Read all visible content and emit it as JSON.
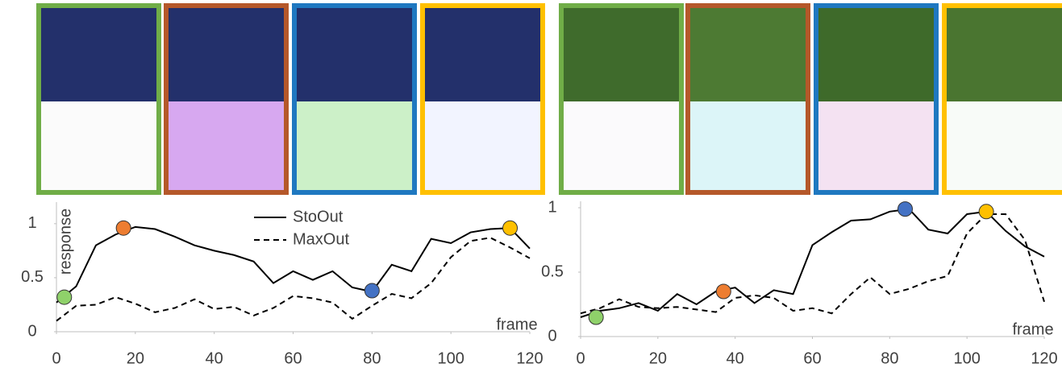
{
  "chart_data": [
    {
      "type": "line",
      "x_label": "frame",
      "y_label": "response",
      "xlim": [
        0,
        120
      ],
      "xticks": [
        0,
        20,
        40,
        60,
        80,
        100,
        120
      ],
      "ylim": [
        0,
        1.2
      ],
      "yticks": [
        0,
        0.5,
        1
      ],
      "legend": true,
      "x": [
        0,
        5,
        10,
        15,
        20,
        25,
        30,
        35,
        40,
        45,
        50,
        55,
        60,
        65,
        70,
        75,
        80,
        85,
        90,
        95,
        100,
        105,
        110,
        115,
        120
      ],
      "series": [
        {
          "name": "StoOut",
          "color": "#000000",
          "dashed": false,
          "values": [
            0.27,
            0.42,
            0.8,
            0.9,
            0.97,
            0.95,
            0.88,
            0.8,
            0.75,
            0.71,
            0.65,
            0.45,
            0.56,
            0.48,
            0.56,
            0.41,
            0.37,
            0.62,
            0.56,
            0.86,
            0.82,
            0.92,
            0.95,
            0.96,
            0.77
          ]
        },
        {
          "name": "MaxOut",
          "color": "#000000",
          "dashed": true,
          "values": [
            0.1,
            0.24,
            0.25,
            0.32,
            0.26,
            0.18,
            0.22,
            0.3,
            0.21,
            0.23,
            0.15,
            0.22,
            0.33,
            0.31,
            0.27,
            0.12,
            0.24,
            0.35,
            0.31,
            0.45,
            0.69,
            0.84,
            0.87,
            0.78,
            0.68
          ]
        }
      ],
      "markers": {
        "x": [
          2,
          17,
          80,
          115
        ],
        "values": [
          0.32,
          0.96,
          0.38,
          0.96
        ],
        "colors": [
          "#8fd16a",
          "#ed7d31",
          "#4472c4",
          "#ffc000"
        ]
      }
    },
    {
      "type": "line",
      "x_label": "frame",
      "xlim": [
        0,
        120
      ],
      "xticks": [
        0,
        20,
        40,
        60,
        80,
        100,
        120
      ],
      "ylim": [
        0,
        1.05
      ],
      "yticks": [
        0,
        0.5,
        1
      ],
      "legend": false,
      "x": [
        0,
        5,
        10,
        15,
        20,
        25,
        30,
        35,
        40,
        45,
        50,
        55,
        60,
        65,
        70,
        75,
        80,
        85,
        90,
        95,
        100,
        105,
        110,
        115,
        120
      ],
      "series": [
        {
          "color": "#000000",
          "dashed": false,
          "values": [
            0.15,
            0.2,
            0.22,
            0.26,
            0.2,
            0.33,
            0.25,
            0.35,
            0.38,
            0.26,
            0.36,
            0.33,
            0.71,
            0.81,
            0.9,
            0.91,
            0.97,
            0.99,
            0.83,
            0.8,
            0.95,
            0.97,
            0.82,
            0.7,
            0.62
          ]
        },
        {
          "color": "#000000",
          "dashed": true,
          "values": [
            0.18,
            0.22,
            0.29,
            0.23,
            0.22,
            0.23,
            0.21,
            0.19,
            0.3,
            0.32,
            0.3,
            0.2,
            0.22,
            0.18,
            0.33,
            0.46,
            0.33,
            0.37,
            0.43,
            0.47,
            0.8,
            0.95,
            0.95,
            0.75,
            0.27
          ]
        }
      ],
      "markers": {
        "x": [
          4,
          37,
          84,
          105
        ],
        "values": [
          0.15,
          0.35,
          0.99,
          0.97
        ],
        "colors": [
          "#8fd16a",
          "#ed7d31",
          "#4472c4",
          "#ffc000"
        ]
      }
    }
  ]
}
